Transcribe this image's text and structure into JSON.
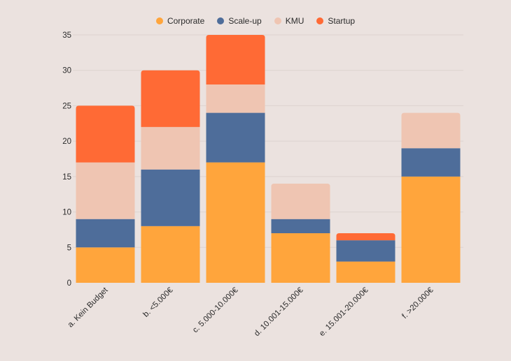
{
  "chart_data": {
    "type": "bar",
    "stacked": true,
    "title": "",
    "xlabel": "",
    "ylabel": "",
    "ylim": [
      0,
      35
    ],
    "yticks": [
      0,
      5,
      10,
      15,
      20,
      25,
      30,
      35
    ],
    "grid": true,
    "legend_position": "top-center",
    "categories": [
      "a. Kein Budget",
      "b. <5.000€",
      "c. 5.000-10.000€",
      "d. 10.001-15.000€",
      "e. 15.001-20.000€",
      "f. >20.000€"
    ],
    "series": [
      {
        "name": "Corporate",
        "color": "#ffa53c",
        "values": [
          5,
          8,
          17,
          7,
          3,
          15
        ]
      },
      {
        "name": "Scale-up",
        "color": "#4e6d9a",
        "values": [
          4,
          8,
          7,
          2,
          3,
          4
        ]
      },
      {
        "name": "KMU",
        "color": "#efc5b2",
        "values": [
          8,
          6,
          4,
          5,
          0,
          5
        ]
      },
      {
        "name": "Startup",
        "color": "#ff6a35",
        "values": [
          8,
          8,
          7,
          0,
          1,
          0
        ]
      }
    ]
  }
}
